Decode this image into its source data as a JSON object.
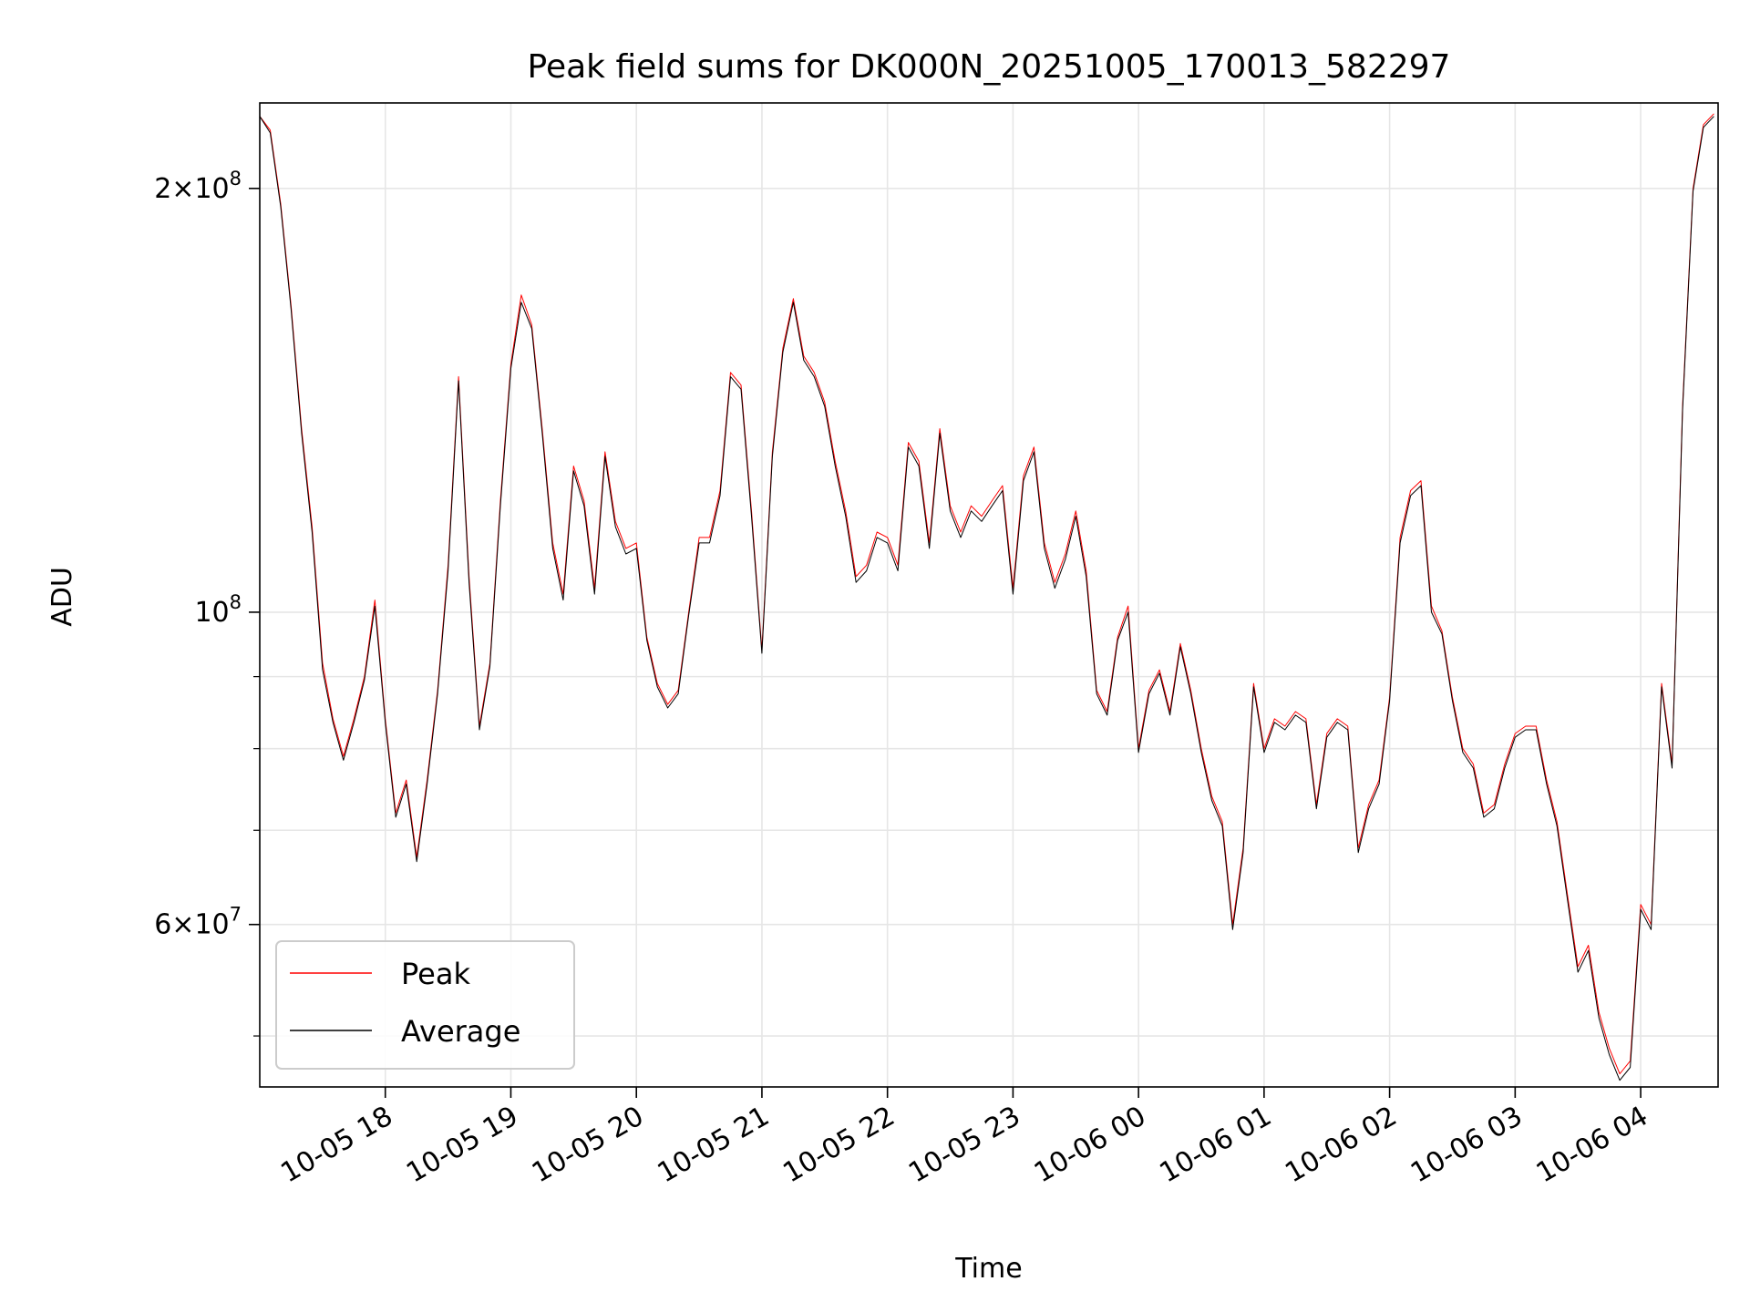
{
  "chart_data": {
    "type": "line",
    "title": "Peak field sums for DK000N_20251005_170013_582297",
    "xlabel": "Time",
    "ylabel": "ADU",
    "yscale": "log",
    "ylim": [
      46000000,
      230000000
    ],
    "xlim": [
      "2025-10-05T17:00",
      "2025-10-06T04:37"
    ],
    "grid": true,
    "legend_position": "lower-left",
    "x_ticks": [
      {
        "t": "2025-10-05T18:00",
        "label": "10-05 18"
      },
      {
        "t": "2025-10-05T19:00",
        "label": "10-05 19"
      },
      {
        "t": "2025-10-05T20:00",
        "label": "10-05 20"
      },
      {
        "t": "2025-10-05T21:00",
        "label": "10-05 21"
      },
      {
        "t": "2025-10-05T22:00",
        "label": "10-05 22"
      },
      {
        "t": "2025-10-05T23:00",
        "label": "10-05 23"
      },
      {
        "t": "2025-10-06T00:00",
        "label": "10-06 00"
      },
      {
        "t": "2025-10-06T01:00",
        "label": "10-06 01"
      },
      {
        "t": "2025-10-06T02:00",
        "label": "10-06 02"
      },
      {
        "t": "2025-10-06T03:00",
        "label": "10-06 03"
      },
      {
        "t": "2025-10-06T04:00",
        "label": "10-06 04"
      }
    ],
    "y_ticks_major": [
      {
        "value": 200000000,
        "mantissa": "2",
        "exponent": "8"
      },
      {
        "value": 100000000,
        "mantissa": "",
        "exponent": "8"
      },
      {
        "value": 60000000,
        "mantissa": "6",
        "exponent": "7"
      }
    ],
    "y_ticks_minor": [
      50000000,
      70000000,
      80000000,
      90000000
    ],
    "series": [
      {
        "name": "Peak",
        "color": "#ff0000",
        "x": [
          "2025-10-05T17:00",
          "2025-10-05T17:05",
          "2025-10-05T17:10",
          "2025-10-05T17:15",
          "2025-10-05T17:20",
          "2025-10-05T17:25",
          "2025-10-05T17:30",
          "2025-10-05T17:35",
          "2025-10-05T17:40",
          "2025-10-05T17:45",
          "2025-10-05T17:50",
          "2025-10-05T17:55",
          "2025-10-05T18:00",
          "2025-10-05T18:05",
          "2025-10-05T18:10",
          "2025-10-05T18:15",
          "2025-10-05T18:20",
          "2025-10-05T18:25",
          "2025-10-05T18:30",
          "2025-10-05T18:35",
          "2025-10-05T18:40",
          "2025-10-05T18:45",
          "2025-10-05T18:50",
          "2025-10-05T18:55",
          "2025-10-05T19:00",
          "2025-10-05T19:05",
          "2025-10-05T19:10",
          "2025-10-05T19:15",
          "2025-10-05T19:20",
          "2025-10-05T19:25",
          "2025-10-05T19:30",
          "2025-10-05T19:35",
          "2025-10-05T19:40",
          "2025-10-05T19:45",
          "2025-10-05T19:50",
          "2025-10-05T19:55",
          "2025-10-05T20:00",
          "2025-10-05T20:05",
          "2025-10-05T20:10",
          "2025-10-05T20:15",
          "2025-10-05T20:20",
          "2025-10-05T20:25",
          "2025-10-05T20:30",
          "2025-10-05T20:35",
          "2025-10-05T20:40",
          "2025-10-05T20:45",
          "2025-10-05T20:50",
          "2025-10-05T20:55",
          "2025-10-05T21:00",
          "2025-10-05T21:05",
          "2025-10-05T21:10",
          "2025-10-05T21:15",
          "2025-10-05T21:20",
          "2025-10-05T21:25",
          "2025-10-05T21:30",
          "2025-10-05T21:35",
          "2025-10-05T21:40",
          "2025-10-05T21:45",
          "2025-10-05T21:50",
          "2025-10-05T21:55",
          "2025-10-05T22:00",
          "2025-10-05T22:05",
          "2025-10-05T22:10",
          "2025-10-05T22:15",
          "2025-10-05T22:20",
          "2025-10-05T22:25",
          "2025-10-05T22:30",
          "2025-10-05T22:35",
          "2025-10-05T22:40",
          "2025-10-05T22:45",
          "2025-10-05T22:50",
          "2025-10-05T22:55",
          "2025-10-05T23:00",
          "2025-10-05T23:05",
          "2025-10-05T23:10",
          "2025-10-05T23:15",
          "2025-10-05T23:20",
          "2025-10-05T23:25",
          "2025-10-05T23:30",
          "2025-10-05T23:35",
          "2025-10-05T23:40",
          "2025-10-05T23:45",
          "2025-10-05T23:50",
          "2025-10-05T23:55",
          "2025-10-06T00:00",
          "2025-10-06T00:05",
          "2025-10-06T00:10",
          "2025-10-06T00:15",
          "2025-10-06T00:20",
          "2025-10-06T00:25",
          "2025-10-06T00:30",
          "2025-10-06T00:35",
          "2025-10-06T00:40",
          "2025-10-06T00:45",
          "2025-10-06T00:50",
          "2025-10-06T00:55",
          "2025-10-06T01:00",
          "2025-10-06T01:05",
          "2025-10-06T01:10",
          "2025-10-06T01:15",
          "2025-10-06T01:20",
          "2025-10-06T01:25",
          "2025-10-06T01:30",
          "2025-10-06T01:35",
          "2025-10-06T01:40",
          "2025-10-06T01:45",
          "2025-10-06T01:50",
          "2025-10-06T01:55",
          "2025-10-06T02:00",
          "2025-10-06T02:05",
          "2025-10-06T02:10",
          "2025-10-06T02:15",
          "2025-10-06T02:20",
          "2025-10-06T02:25",
          "2025-10-06T02:30",
          "2025-10-06T02:35",
          "2025-10-06T02:40",
          "2025-10-06T02:45",
          "2025-10-06T02:50",
          "2025-10-06T02:55",
          "2025-10-06T03:00",
          "2025-10-06T03:05",
          "2025-10-06T03:10",
          "2025-10-06T03:15",
          "2025-10-06T03:20",
          "2025-10-06T03:25",
          "2025-10-06T03:30",
          "2025-10-06T03:35",
          "2025-10-06T03:40",
          "2025-10-06T03:45",
          "2025-10-06T03:50",
          "2025-10-06T03:55",
          "2025-10-06T04:00",
          "2025-10-06T04:05",
          "2025-10-06T04:10",
          "2025-10-06T04:15",
          "2025-10-06T04:20",
          "2025-10-06T04:25",
          "2025-10-06T04:30",
          "2025-10-06T04:35"
        ],
        "values": [
          225000000,
          220000000,
          195000000,
          165000000,
          135000000,
          115000000,
          92000000,
          84000000,
          79000000,
          84000000,
          90000000,
          102000000,
          84000000,
          72000000,
          76000000,
          67000000,
          76000000,
          88000000,
          108000000,
          147000000,
          106000000,
          83000000,
          92000000,
          120000000,
          150000000,
          168000000,
          160000000,
          135000000,
          112000000,
          103000000,
          127000000,
          120000000,
          104000000,
          130000000,
          116000000,
          111000000,
          112000000,
          96000000,
          89000000,
          86000000,
          88000000,
          100000000,
          113000000,
          113000000,
          122000000,
          148000000,
          145000000,
          118000000,
          94000000,
          130000000,
          154000000,
          167000000,
          152000000,
          148000000,
          141000000,
          128000000,
          118000000,
          106000000,
          108000000,
          114000000,
          113000000,
          108000000,
          132000000,
          128000000,
          112000000,
          135000000,
          119000000,
          114000000,
          119000000,
          117000000,
          120000000,
          123000000,
          104000000,
          125000000,
          131000000,
          112000000,
          105000000,
          110000000,
          118000000,
          107000000,
          88000000,
          85000000,
          96000000,
          101000000,
          80000000,
          88000000,
          91000000,
          85000000,
          95000000,
          88000000,
          80000000,
          74000000,
          71000000,
          60000000,
          68000000,
          89000000,
          80000000,
          84000000,
          83000000,
          85000000,
          84000000,
          73000000,
          82000000,
          84000000,
          83000000,
          68000000,
          73000000,
          76000000,
          87000000,
          113000000,
          122000000,
          124000000,
          101000000,
          97000000,
          87000000,
          80000000,
          78000000,
          72000000,
          73000000,
          78000000,
          82000000,
          83000000,
          83000000,
          76000000,
          71000000,
          63000000,
          56000000,
          58000000,
          52000000,
          49000000,
          47000000,
          48000000,
          62000000,
          60000000,
          89000000,
          78000000,
          140000000,
          200000000,
          222000000,
          226000000
        ],
        "line_width": 1
      },
      {
        "name": "Average",
        "color": "#000000",
        "x": [
          "2025-10-05T17:00",
          "2025-10-05T17:05",
          "2025-10-05T17:10",
          "2025-10-05T17:15",
          "2025-10-05T17:20",
          "2025-10-05T17:25",
          "2025-10-05T17:30",
          "2025-10-05T17:35",
          "2025-10-05T17:40",
          "2025-10-05T17:45",
          "2025-10-05T17:50",
          "2025-10-05T17:55",
          "2025-10-05T18:00",
          "2025-10-05T18:05",
          "2025-10-05T18:10",
          "2025-10-05T18:15",
          "2025-10-05T18:20",
          "2025-10-05T18:25",
          "2025-10-05T18:30",
          "2025-10-05T18:35",
          "2025-10-05T18:40",
          "2025-10-05T18:45",
          "2025-10-05T18:50",
          "2025-10-05T18:55",
          "2025-10-05T19:00",
          "2025-10-05T19:05",
          "2025-10-05T19:10",
          "2025-10-05T19:15",
          "2025-10-05T19:20",
          "2025-10-05T19:25",
          "2025-10-05T19:30",
          "2025-10-05T19:35",
          "2025-10-05T19:40",
          "2025-10-05T19:45",
          "2025-10-05T19:50",
          "2025-10-05T19:55",
          "2025-10-05T20:00",
          "2025-10-05T20:05",
          "2025-10-05T20:10",
          "2025-10-05T20:15",
          "2025-10-05T20:20",
          "2025-10-05T20:25",
          "2025-10-05T20:30",
          "2025-10-05T20:35",
          "2025-10-05T20:40",
          "2025-10-05T20:45",
          "2025-10-05T20:50",
          "2025-10-05T20:55",
          "2025-10-05T21:00",
          "2025-10-05T21:05",
          "2025-10-05T21:10",
          "2025-10-05T21:15",
          "2025-10-05T21:20",
          "2025-10-05T21:25",
          "2025-10-05T21:30",
          "2025-10-05T21:35",
          "2025-10-05T21:40",
          "2025-10-05T21:45",
          "2025-10-05T21:50",
          "2025-10-05T21:55",
          "2025-10-05T22:00",
          "2025-10-05T22:05",
          "2025-10-05T22:10",
          "2025-10-05T22:15",
          "2025-10-05T22:20",
          "2025-10-05T22:25",
          "2025-10-05T22:30",
          "2025-10-05T22:35",
          "2025-10-05T22:40",
          "2025-10-05T22:45",
          "2025-10-05T22:50",
          "2025-10-05T22:55",
          "2025-10-05T23:00",
          "2025-10-05T23:05",
          "2025-10-05T23:10",
          "2025-10-05T23:15",
          "2025-10-05T23:20",
          "2025-10-05T23:25",
          "2025-10-05T23:30",
          "2025-10-05T23:35",
          "2025-10-05T23:40",
          "2025-10-05T23:45",
          "2025-10-05T23:50",
          "2025-10-05T23:55",
          "2025-10-06T00:00",
          "2025-10-06T00:05",
          "2025-10-06T00:10",
          "2025-10-06T00:15",
          "2025-10-06T00:20",
          "2025-10-06T00:25",
          "2025-10-06T00:30",
          "2025-10-06T00:35",
          "2025-10-06T00:40",
          "2025-10-06T00:45",
          "2025-10-06T00:50",
          "2025-10-06T00:55",
          "2025-10-06T01:00",
          "2025-10-06T01:05",
          "2025-10-06T01:10",
          "2025-10-06T01:15",
          "2025-10-06T01:20",
          "2025-10-06T01:25",
          "2025-10-06T01:30",
          "2025-10-06T01:35",
          "2025-10-06T01:40",
          "2025-10-06T01:45",
          "2025-10-06T01:50",
          "2025-10-06T01:55",
          "2025-10-06T02:00",
          "2025-10-06T02:05",
          "2025-10-06T02:10",
          "2025-10-06T02:15",
          "2025-10-06T02:20",
          "2025-10-06T02:25",
          "2025-10-06T02:30",
          "2025-10-06T02:35",
          "2025-10-06T02:40",
          "2025-10-06T02:45",
          "2025-10-06T02:50",
          "2025-10-06T02:55",
          "2025-10-06T03:00",
          "2025-10-06T03:05",
          "2025-10-06T03:10",
          "2025-10-06T03:15",
          "2025-10-06T03:20",
          "2025-10-06T03:25",
          "2025-10-06T03:30",
          "2025-10-06T03:35",
          "2025-10-06T03:40",
          "2025-10-06T03:45",
          "2025-10-06T03:50",
          "2025-10-06T03:55",
          "2025-10-06T04:00",
          "2025-10-06T04:05",
          "2025-10-06T04:10",
          "2025-10-06T04:15",
          "2025-10-06T04:20",
          "2025-10-06T04:25",
          "2025-10-06T04:30",
          "2025-10-06T04:35"
        ],
        "values": [
          225000000,
          219000000,
          194000000,
          164000000,
          134000000,
          114000000,
          91000000,
          83500000,
          78500000,
          83500000,
          89500000,
          101000000,
          83500000,
          71500000,
          75500000,
          66500000,
          75500000,
          87500000,
          107000000,
          146000000,
          105000000,
          82500000,
          91500000,
          119000000,
          149000000,
          166000000,
          159000000,
          134000000,
          111000000,
          102000000,
          126000000,
          119000000,
          103000000,
          129000000,
          115000000,
          110000000,
          111000000,
          95500000,
          88500000,
          85500000,
          87500000,
          99500000,
          112000000,
          112000000,
          121000000,
          147000000,
          144000000,
          117000000,
          93500000,
          129000000,
          153000000,
          166000000,
          151000000,
          147000000,
          140000000,
          127000000,
          117000000,
          105000000,
          107000000,
          113000000,
          112000000,
          107000000,
          131000000,
          127000000,
          111000000,
          134000000,
          118000000,
          113000000,
          118000000,
          116000000,
          119000000,
          122000000,
          103000000,
          124000000,
          130000000,
          111000000,
          104000000,
          109000000,
          117000000,
          106000000,
          87500000,
          84500000,
          95500000,
          100000000,
          79500000,
          87500000,
          90500000,
          84500000,
          94500000,
          87500000,
          79500000,
          73500000,
          70500000,
          59500000,
          67500000,
          88500000,
          79500000,
          83500000,
          82500000,
          84500000,
          83500000,
          72500000,
          81500000,
          83500000,
          82500000,
          67500000,
          72500000,
          75500000,
          86500000,
          112000000,
          121000000,
          123000000,
          100000000,
          96500000,
          86500000,
          79500000,
          77500000,
          71500000,
          72500000,
          77500000,
          81500000,
          82500000,
          82500000,
          75500000,
          70500000,
          62500000,
          55500000,
          57500000,
          51500000,
          48500000,
          46500000,
          47500000,
          61500000,
          59500000,
          88500000,
          77500000,
          139000000,
          199000000,
          221000000,
          225000000
        ],
        "line_width": 1
      }
    ]
  }
}
